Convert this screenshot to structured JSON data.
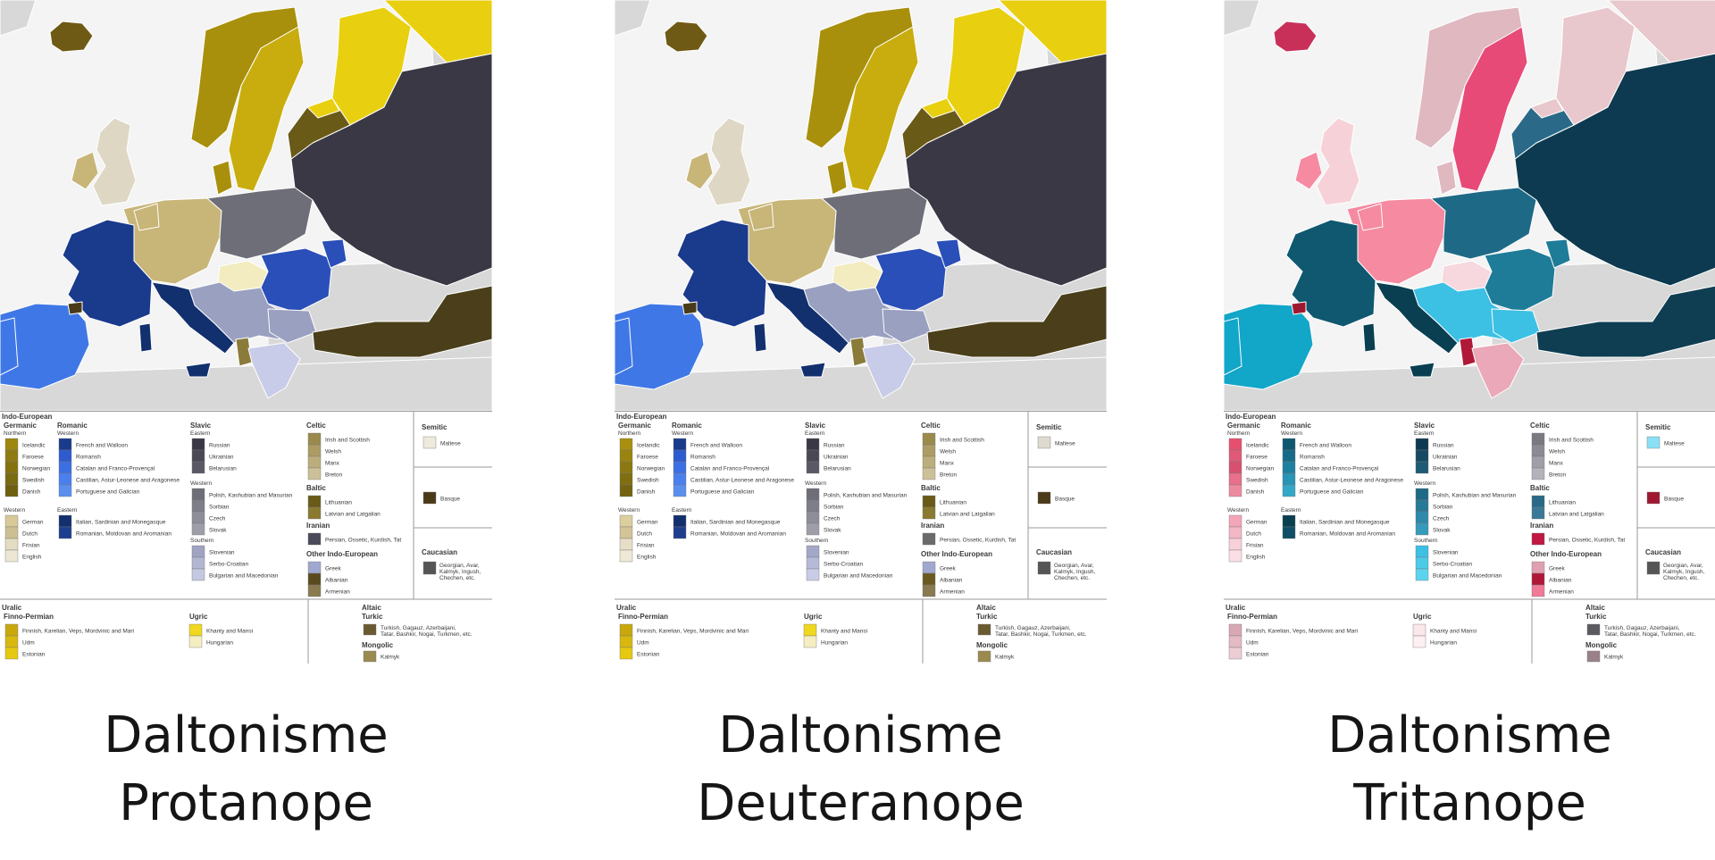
{
  "panels": [
    {
      "id": "protanope",
      "caption": [
        "Daltonisme",
        "Protanope"
      ],
      "palette": {
        "land_other": "#d8d8d8",
        "sea": "#f4f4f4",
        "border": "#ffffff",
        "north_germanic": "#a8900c",
        "scand": "#c9ad0e",
        "west_germanic": "#c8b578",
        "uk": "#ded7c4",
        "iceland": "#6e5a14",
        "france": "#1a3a8c",
        "iberia": "#3f78e6",
        "italy": "#12306e",
        "romania": "#2a4fb8",
        "east_slavic": "#3a3844",
        "west_slavic": "#6e6e78",
        "south_slavic": "#9aa0c0",
        "baltic": "#6a5a18",
        "finnic": "#e8cf10",
        "ugric": "#f7e870",
        "hungary": "#f2ecc0",
        "turkic": "#4a3f1a",
        "albania": "#8a7b3a",
        "greece": "#c8cce8",
        "basque": "#4a3a18"
      },
      "swatch_colors": {
        "germanic_n": [
          "#9d870e",
          "#8f7b10",
          "#85720f",
          "#7a6a10",
          "#6f6010"
        ],
        "germanic_w": [
          "#d8c998",
          "#cdbf92",
          "#e4dcc2",
          "#ece6d4"
        ],
        "romanic_w": [
          "#1a3a8c",
          "#2d5bd0",
          "#3c6fe4",
          "#4a7fee",
          "#5a8ff0"
        ],
        "romanic_e": [
          "#12306e",
          "#1e3f8e"
        ],
        "slavic_e": [
          "#3a3844",
          "#4a4854",
          "#5a5864"
        ],
        "slavic_w": [
          "#6e6e78",
          "#7e7e88",
          "#8e8e98",
          "#9e9ea8"
        ],
        "slavic_s": [
          "#a0a4c2",
          "#b2b6d0",
          "#c4c8e0"
        ],
        "celtic": [
          "#9a8a4c",
          "#ac9c64",
          "#bcae7c",
          "#ccc098"
        ],
        "baltic": [
          "#6a5a18",
          "#8a7a30"
        ],
        "iranian": [
          "#4a4a5a"
        ],
        "other_ie": [
          "#a0a8d0",
          "#5a4a20",
          "#8a7a50"
        ],
        "semitic": [
          "#eeeadc"
        ],
        "basque": [
          "#4a3a18"
        ],
        "caucasian": [
          "#555555"
        ],
        "finno_permian": [
          "#c9a80c",
          "#d8b80e",
          "#e6c810"
        ],
        "ugric": [
          "#f0d820",
          "#f4eec0"
        ],
        "turkic": [
          "#6a5a30"
        ],
        "mongolic": [
          "#9a8a50"
        ]
      }
    },
    {
      "id": "deuteranope",
      "caption": [
        "Daltonisme",
        "Deuteranope"
      ],
      "palette": {
        "land_other": "#d8d8d8",
        "sea": "#f4f4f4",
        "border": "#ffffff",
        "north_germanic": "#a8900c",
        "scand": "#c9ad0e",
        "west_germanic": "#c8b578",
        "uk": "#ded7c4",
        "iceland": "#6e5a14",
        "france": "#1a3a8c",
        "iberia": "#3f78e6",
        "italy": "#12306e",
        "romania": "#2a4fb8",
        "east_slavic": "#3a3844",
        "west_slavic": "#6e6e78",
        "south_slavic": "#9aa0c0",
        "baltic": "#6a5a18",
        "finnic": "#e8cf10",
        "ugric": "#f7e870",
        "hungary": "#f2ecc0",
        "turkic": "#4a3f1a",
        "albania": "#8a7b3a",
        "greece": "#c8cce8",
        "basque": "#4a3a18"
      },
      "swatch_colors": {
        "germanic_n": [
          "#a8900e",
          "#9a8410",
          "#8c7810",
          "#806e10",
          "#746410"
        ],
        "germanic_w": [
          "#dccf9e",
          "#d2c496",
          "#e6dec6",
          "#eee8d6"
        ],
        "romanic_w": [
          "#1a3a8c",
          "#2d5bd0",
          "#3c6fe4",
          "#4a7fee",
          "#5a8ff0"
        ],
        "romanic_e": [
          "#12306e",
          "#1e3f8e"
        ],
        "slavic_e": [
          "#3a3844",
          "#4a4854",
          "#5a5864"
        ],
        "slavic_w": [
          "#6e6e78",
          "#7e7e88",
          "#8e8e98",
          "#9e9ea8"
        ],
        "slavic_s": [
          "#a4a8c8",
          "#b6bad6",
          "#c8cce6"
        ],
        "celtic": [
          "#9a8a4c",
          "#ac9c64",
          "#bcae7c",
          "#ccc098"
        ],
        "baltic": [
          "#6a5a18",
          "#8a7a30"
        ],
        "iranian": [
          "#6a6a6a"
        ],
        "other_ie": [
          "#a0a8d0",
          "#6a5a20",
          "#8a7a50"
        ],
        "semitic": [
          "#dedad0"
        ],
        "basque": [
          "#4a3a18"
        ],
        "caucasian": [
          "#555555"
        ],
        "finno_permian": [
          "#c9a80c",
          "#d8b80e",
          "#e6c810"
        ],
        "ugric": [
          "#f0d820",
          "#f4eec0"
        ],
        "turkic": [
          "#6a5a30"
        ],
        "mongolic": [
          "#9a8a50"
        ]
      }
    },
    {
      "id": "tritanope",
      "caption": [
        "Daltonisme",
        "Tritanope"
      ],
      "palette": {
        "land_other": "#d8d8d8",
        "sea": "#f4f4f4",
        "border": "#ffffff",
        "north_germanic": "#e0b8c0",
        "scand": "#e84a78",
        "west_germanic": "#f58aa0",
        "uk": "#f6d2d8",
        "iceland": "#c8305a",
        "france": "#0f5870",
        "iberia": "#12a6c8",
        "italy": "#0a3f52",
        "romania": "#1e7c98",
        "east_slavic": "#0d3a50",
        "west_slavic": "#1e6a86",
        "south_slavic": "#3cc0e4",
        "baltic": "#2a6a88",
        "finnic": "#e8c8cc",
        "ugric": "#f8e2e6",
        "hungary": "#f6d8de",
        "turkic": "#0f3e52",
        "albania": "#b01838",
        "greece": "#eaa8b8",
        "basque": "#a01830"
      },
      "swatch_colors": {
        "germanic_n": [
          "#e6506e",
          "#e05a78",
          "#d85070",
          "#e8708a",
          "#ee8aa0"
        ],
        "germanic_w": [
          "#f4a6b8",
          "#f2b8c6",
          "#f8d0da",
          "#fae0e6"
        ],
        "romanic_w": [
          "#0d5870",
          "#166c88",
          "#1e80a0",
          "#2894b6",
          "#32a8c8"
        ],
        "romanic_e": [
          "#0a3f52",
          "#0e4e66"
        ],
        "slavic_e": [
          "#0d3a50",
          "#154a62",
          "#1d5a74"
        ],
        "slavic_w": [
          "#1e6a86",
          "#267a98",
          "#2e8aaa",
          "#369abc"
        ],
        "slavic_s": [
          "#3cc0e4",
          "#4ccae8",
          "#5cd4ee"
        ],
        "celtic": [
          "#7a7880",
          "#8c8a92",
          "#a09ea6",
          "#b4b2ba"
        ],
        "baltic": [
          "#2a6a88",
          "#3a7a98"
        ],
        "iranian": [
          "#c01840"
        ],
        "other_ie": [
          "#e0a0b0",
          "#b01838",
          "#f07a98"
        ],
        "semitic": [
          "#8ae0f4"
        ],
        "basque": [
          "#a01830"
        ],
        "caucasian": [
          "#555555"
        ],
        "finno_permian": [
          "#d8a8b4",
          "#e4bac4",
          "#eeccd4"
        ],
        "ugric": [
          "#fbe6ea",
          "#fdf0f2"
        ],
        "turkic": [
          "#5a5a60"
        ],
        "mongolic": [
          "#9a8088"
        ]
      }
    }
  ],
  "legend": {
    "ie_title": "Indo-European",
    "germanic": {
      "title": "Germanic",
      "northern": "Northern",
      "northern_items": [
        "Icelandic",
        "Faroese",
        "Norwegian",
        "Swedish",
        "Danish"
      ],
      "western": "Western",
      "western_items": [
        "German",
        "Dutch",
        "Frisian",
        "English"
      ]
    },
    "romanic": {
      "title": "Romanic",
      "western": "Western",
      "western_items": [
        "French and Walloon",
        "Romansh",
        "Catalan and Franco-Provençal",
        "Castilian, Astur-Leonese and Aragonese",
        "Portuguese and Galician"
      ],
      "eastern": "Eastern",
      "eastern_items": [
        "Italian, Sardinian and Monegasque",
        "Romanian, Moldovan and Aromanian"
      ]
    },
    "slavic": {
      "title": "Slavic",
      "eastern": "Eastern",
      "eastern_items": [
        "Russian",
        "Ukrainian",
        "Belarusian"
      ],
      "western": "Western",
      "western_items": [
        "Polish, Kashubian and Masurian",
        "Sorbian",
        "Czech",
        "Slovak"
      ],
      "southern": "Southern",
      "southern_items": [
        "Slovenian",
        "Serbo-Croatian",
        "Bulgarian and Macedonian"
      ]
    },
    "celtic": {
      "title": "Celtic",
      "items": [
        "Irish and Scottish",
        "Welsh",
        "Manx",
        "Breton"
      ]
    },
    "baltic": {
      "title": "Baltic",
      "items": [
        "Lithuanian",
        "Latvian and Latgalian"
      ]
    },
    "iranian": {
      "title": "Iranian",
      "items": [
        "Persian, Ossetic, Kurdish, Tat"
      ]
    },
    "other_ie": {
      "title": "Other Indo-European",
      "items": [
        "Greek",
        "Albanian",
        "Armenian"
      ]
    },
    "semitic": {
      "title": "Semitic",
      "items": [
        "Maltese"
      ]
    },
    "basque": {
      "items": [
        "Basque"
      ]
    },
    "caucasian": {
      "title": "Caucasian",
      "items": [
        "Georgian, Avar,",
        "Kalmyk, Ingush,",
        "Chechen, etc."
      ]
    },
    "uralic": {
      "title": "Uralic",
      "finno_permian": "Finno-Permian",
      "finno_items": [
        "Finnish, Karelian, Veps, Mordvinic and Mari",
        "Udm",
        "Estonian"
      ],
      "ugric": "Ugric",
      "ugric_items": [
        "Khanty and Mansi",
        "Hungarian"
      ]
    },
    "altaic": {
      "title": "Altaic",
      "turkic": "Turkic",
      "turkic_items": [
        "Turkish, Gagauz, Azerbaijani,",
        "Tatar, Bashkir, Nogai, Turkmen, etc."
      ],
      "mongolic": "Mongolic",
      "mongolic_items": [
        "Kalmyk"
      ]
    }
  }
}
